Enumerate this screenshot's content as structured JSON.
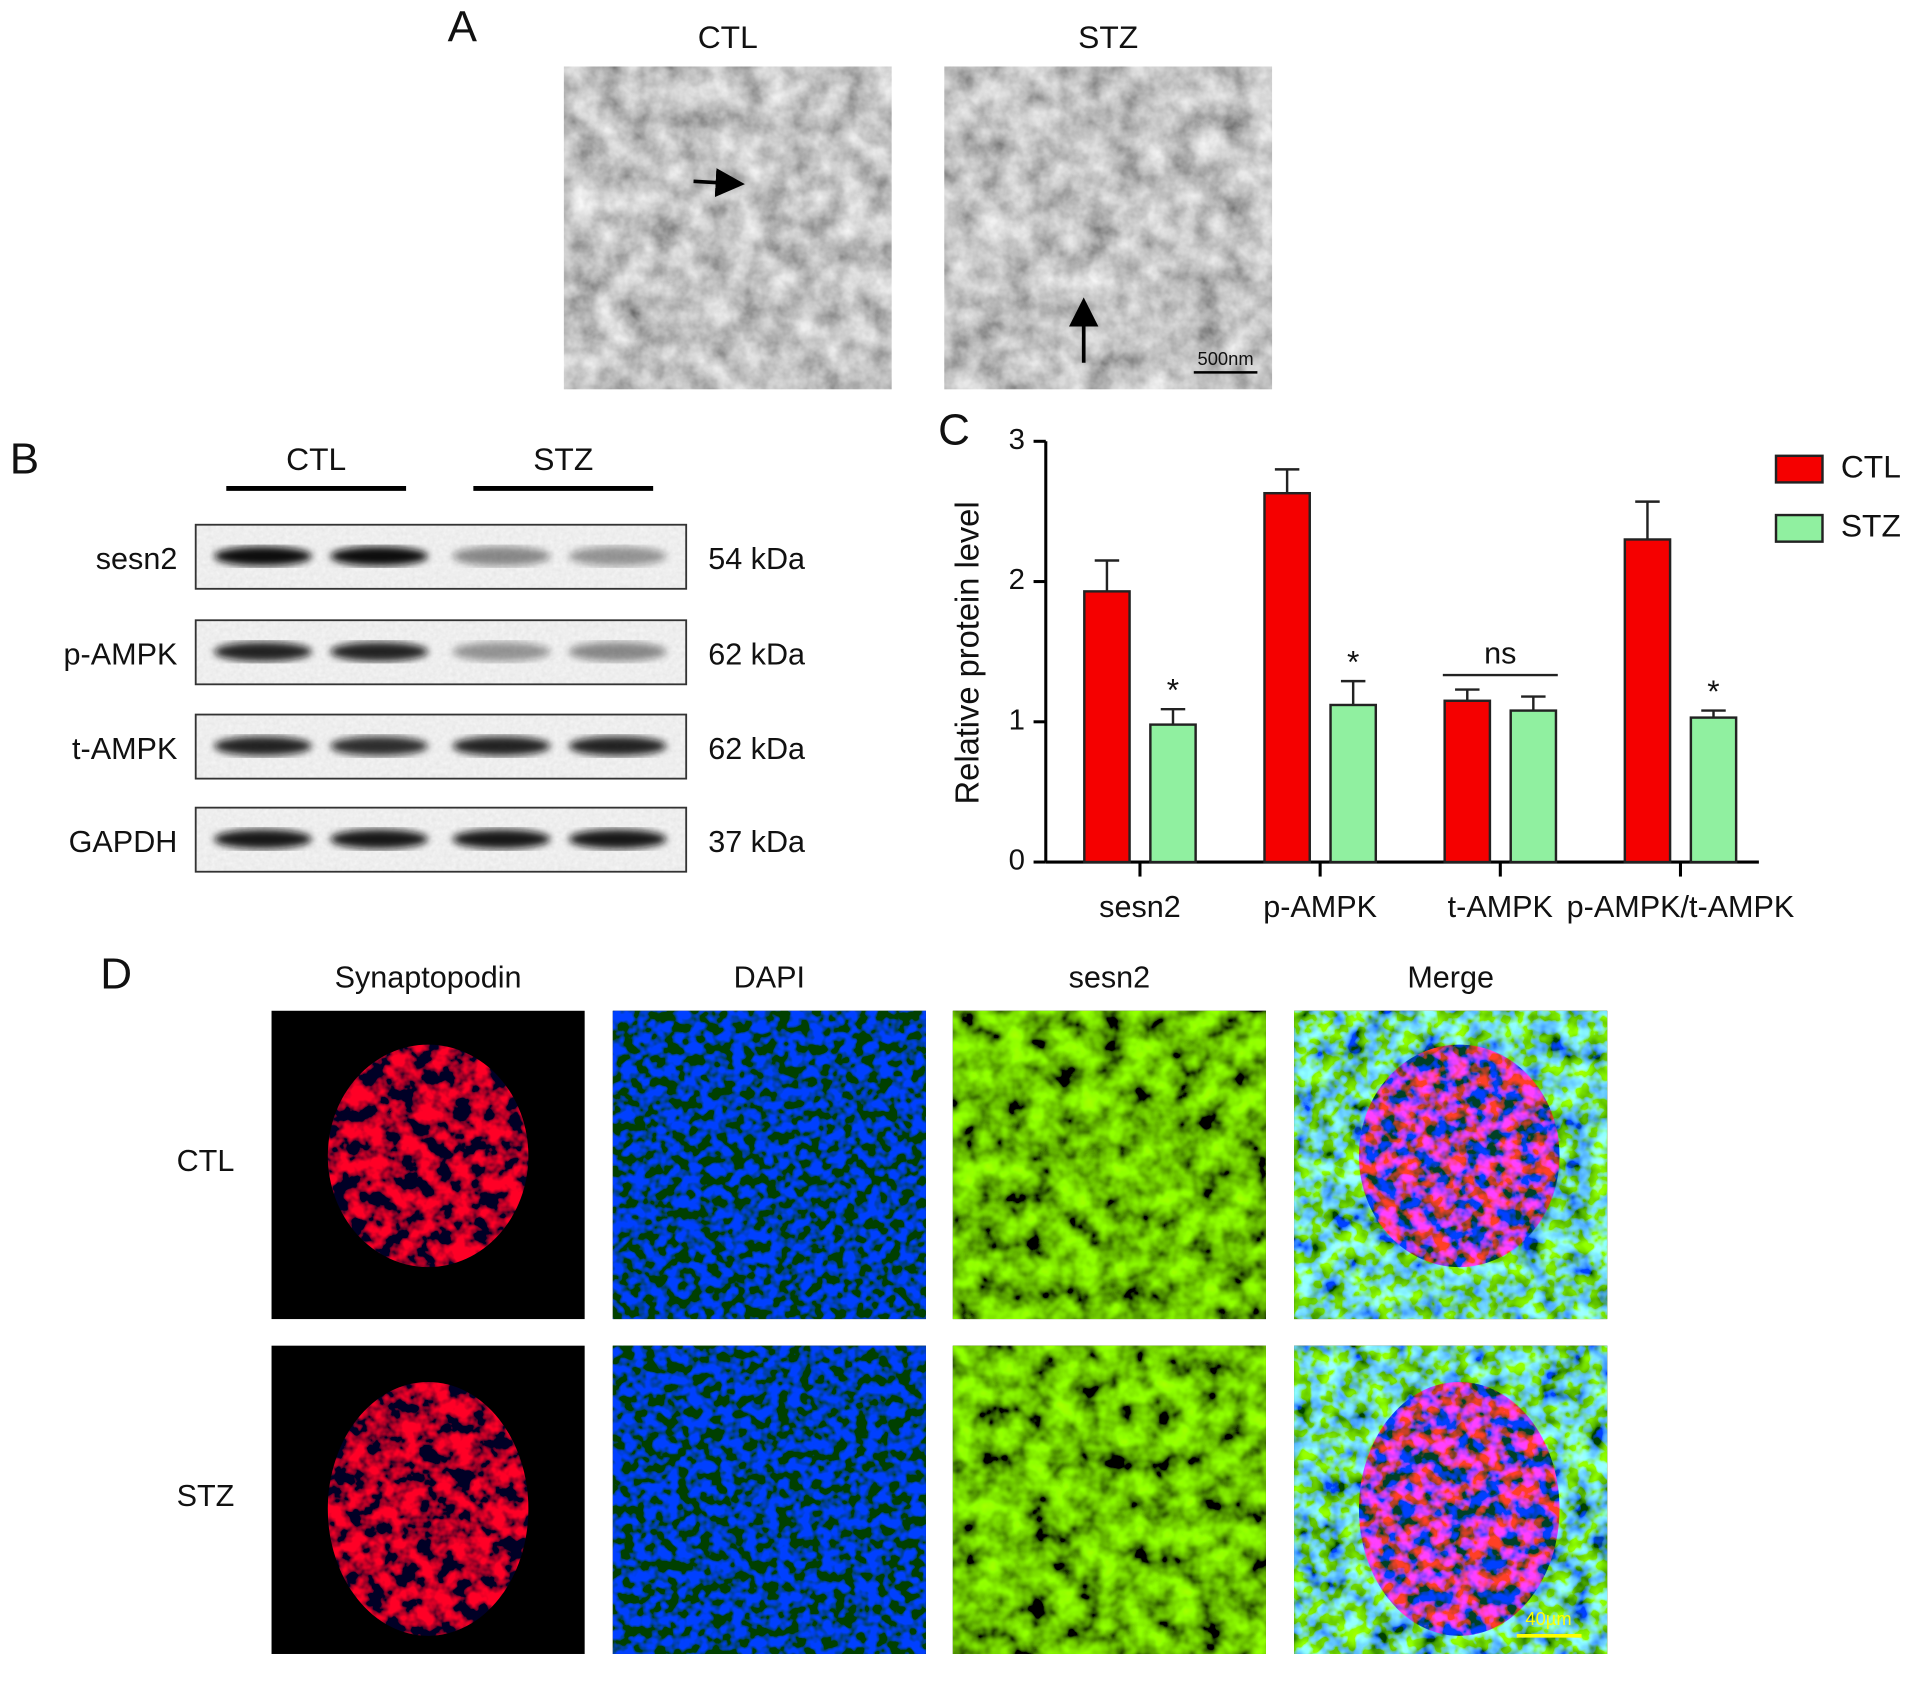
{
  "panel_a": {
    "label": "A",
    "columns": [
      "CTL",
      "STZ"
    ],
    "scale_bar": "500nm"
  },
  "panel_b": {
    "label": "B",
    "groups": [
      "CTL",
      "STZ"
    ],
    "rows": [
      {
        "protein": "sesn2",
        "size": "54 kDa"
      },
      {
        "protein": "p-AMPK",
        "size": "62 kDa"
      },
      {
        "protein": "t-AMPK",
        "size": "62 kDa"
      },
      {
        "protein": "GAPDH",
        "size": "37 kDa"
      }
    ]
  },
  "chart_data": {
    "panel_label": "C",
    "type": "bar",
    "ylabel": "Relative protein level",
    "categories": [
      "sesn2",
      "p-AMPK",
      "t-AMPK",
      "p-AMPK/t-AMPK"
    ],
    "series": [
      {
        "name": "CTL",
        "color": "#f50000",
        "values": [
          1.93,
          2.63,
          1.15,
          2.3
        ],
        "errors": [
          0.22,
          0.17,
          0.08,
          0.27
        ]
      },
      {
        "name": "STZ",
        "color": "#90f0a0",
        "values": [
          0.98,
          1.12,
          1.08,
          1.03
        ],
        "errors": [
          0.11,
          0.17,
          0.1,
          0.05
        ]
      }
    ],
    "significance": [
      "*",
      "*",
      "ns",
      "*"
    ],
    "ylim": [
      0,
      3
    ],
    "yticks": [
      0,
      1,
      2,
      3
    ],
    "legend": "top-right"
  },
  "panel_d": {
    "label": "D",
    "columns": [
      "Synaptopodin",
      "DAPI",
      "sesn2",
      "Merge"
    ],
    "rows": [
      "CTL",
      "STZ"
    ],
    "scale_bar": "40µm"
  }
}
